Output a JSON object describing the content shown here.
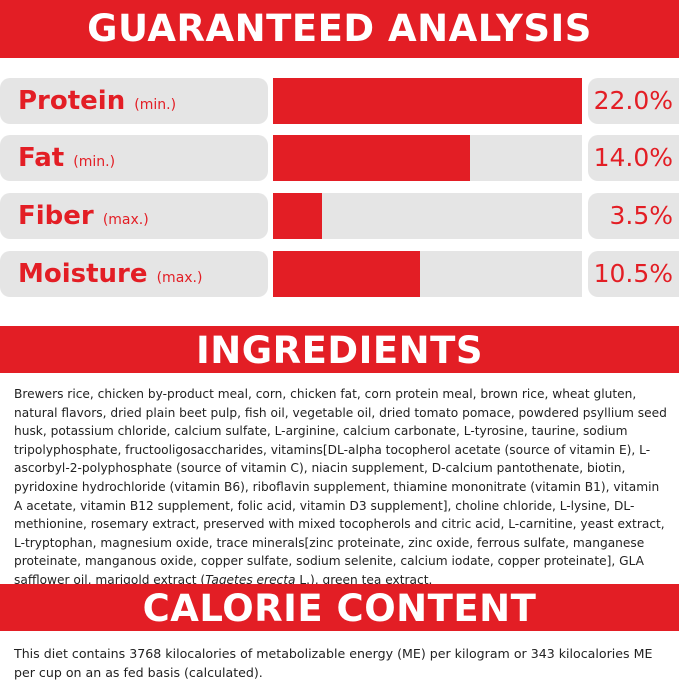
{
  "analysis": {
    "title": "GUARANTEED ANALYSIS",
    "nutrients": [
      {
        "name": "Protein",
        "qualifier": "(min.)",
        "value": 22.0,
        "value_label": "22.0%"
      },
      {
        "name": "Fat",
        "qualifier": "(min.)",
        "value": 14.0,
        "value_label": "14.0%"
      },
      {
        "name": "Fiber",
        "qualifier": "(max.)",
        "value": 3.5,
        "value_label": "3.5%"
      },
      {
        "name": "Moisture",
        "qualifier": "(max.)",
        "value": 10.5,
        "value_label": "10.5%"
      }
    ]
  },
  "ingredients": {
    "title": "INGREDIENTS",
    "text": [
      "Brewers rice, chicken by-product meal, corn, chicken fat, corn protein meal, brown rice, wheat gluten, natural flavors, dried plain beet pulp, fish oil, vegetable oil, dried tomato pomace, powdered psyllium seed husk, potassium chloride, calcium sulfate, L-arginine, calcium carbonate, L-tyrosine, taurine, sodium tripolyphosphate, fructooligosaccharides, vitamins[DL-alpha tocopherol acetate (source of vitamin E), L-ascorbyl-2-polyphosphate (source of vitamin C), niacin supplement, D-calcium pantothenate, biotin, pyridoxine hydrochloride (vitamin B6), riboflavin supplement, thiamine mononitrate (vitamin B1), vitamin A acetate, vitamin B12 supplement, folic acid, vitamin D3 supplement], choline chloride, L-lysine, DL-methionine, rosemary extract, preserved with mixed tocopherols and citric acid, L-carnitine, yeast extract, L-tryptophan, magnesium oxide, trace minerals[zinc proteinate, zinc oxide, ferrous sulfate, manganese proteinate, manganous oxide, copper sulfate, sodium selenite, calcium iodate, copper proteinate], GLA safflower oil, marigold extract (",
      "Tagetes erecta",
      " L.), green tea extract."
    ]
  },
  "calories": {
    "title": "CALORIE CONTENT",
    "text": "This diet contains 3768 kilocalories of metabolizable energy (ME) per kilogram or 343 kilocalories ME per cup on an as fed basis (calculated)."
  }
}
